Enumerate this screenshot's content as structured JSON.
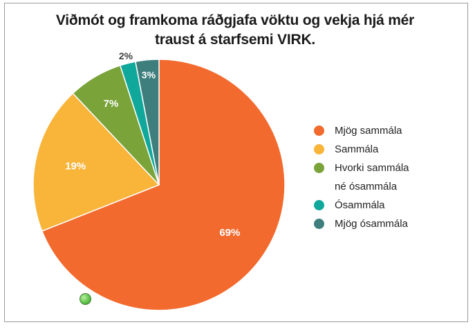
{
  "chart_data": {
    "type": "pie",
    "title_lines": [
      "Viðmót og framkoma ráðgjafa vöktu og vekja hjá mér",
      "traust á starfsemi VIRK."
    ],
    "slices": [
      {
        "label": "Mjög sammála",
        "value": 69,
        "value_label": "69%",
        "color": "#f26a2e"
      },
      {
        "label": "Sammála",
        "value": 19,
        "value_label": "19%",
        "color": "#f9b43a"
      },
      {
        "label": "Hvorki sammála\nné ósammála",
        "value": 7,
        "value_label": "7%",
        "color": "#7aa33a"
      },
      {
        "label": "Ósammála",
        "value": 2,
        "value_label": "2%",
        "color": "#11a89c"
      },
      {
        "label": "Mjög ósammála",
        "value": 3,
        "value_label": "3%",
        "color": "#3e7f7d"
      }
    ],
    "legend_position": "right"
  }
}
